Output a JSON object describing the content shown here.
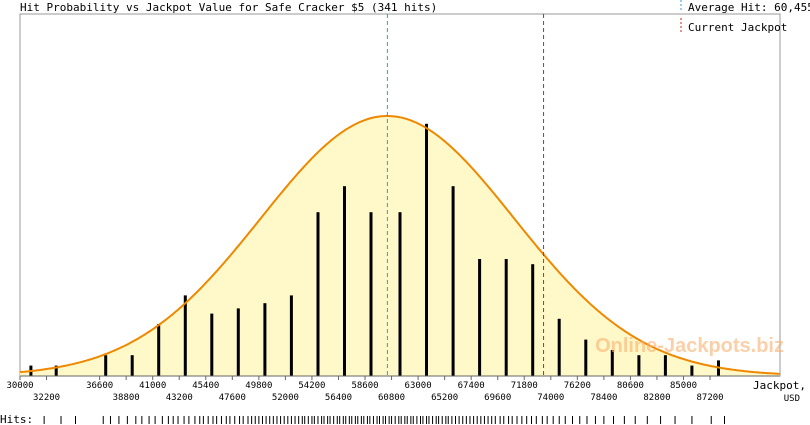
{
  "chart_data": {
    "type": "bar",
    "title": "Hit Probability vs Jackpot Value for Safe Cracker $5 (341 hits)",
    "xlabel": "Jackpot,",
    "xlabel_unit": "USD",
    "hits_label": "Hits:",
    "watermark": "Online-Jackpots.biz",
    "xlim": [
      30000,
      93000
    ],
    "ylim": [
      0,
      1
    ],
    "average": {
      "label": "Average Hit: 60,455",
      "value": 60455,
      "color": "#3399dd"
    },
    "current": {
      "label": "Current Jackpot",
      "value": 73400,
      "color": "#cc2222"
    },
    "curve": {
      "mean": 60455,
      "sd": 10500,
      "peak": 1.0,
      "stroke": "#ee8800",
      "fill": "#fff8c8"
    },
    "ticks_upper": [
      30000,
      36600,
      41000,
      45400,
      49800,
      54200,
      58600,
      63000,
      67400,
      71800,
      76200,
      80600,
      85000
    ],
    "ticks_lower": [
      32200,
      38800,
      43200,
      47600,
      52000,
      56400,
      60800,
      65200,
      69600,
      74000,
      78400,
      82800,
      87200
    ],
    "bars": [
      {
        "x": 30900,
        "h": 0.04
      },
      {
        "x": 33000,
        "h": 0.04
      },
      {
        "x": 37100,
        "h": 0.08
      },
      {
        "x": 39300,
        "h": 0.08
      },
      {
        "x": 41500,
        "h": 0.2
      },
      {
        "x": 43700,
        "h": 0.31
      },
      {
        "x": 45900,
        "h": 0.24
      },
      {
        "x": 48100,
        "h": 0.26
      },
      {
        "x": 50300,
        "h": 0.28
      },
      {
        "x": 52500,
        "h": 0.31
      },
      {
        "x": 54700,
        "h": 0.63
      },
      {
        "x": 56900,
        "h": 0.73
      },
      {
        "x": 59100,
        "h": 0.63
      },
      {
        "x": 61500,
        "h": 0.63
      },
      {
        "x": 63700,
        "h": 0.97
      },
      {
        "x": 65900,
        "h": 0.73
      },
      {
        "x": 68100,
        "h": 0.45
      },
      {
        "x": 70300,
        "h": 0.45
      },
      {
        "x": 72500,
        "h": 0.43
      },
      {
        "x": 74700,
        "h": 0.22
      },
      {
        "x": 76900,
        "h": 0.14
      },
      {
        "x": 79100,
        "h": 0.1
      },
      {
        "x": 81300,
        "h": 0.08
      },
      {
        "x": 83500,
        "h": 0.08
      },
      {
        "x": 85700,
        "h": 0.04
      },
      {
        "x": 87900,
        "h": 0.06
      }
    ],
    "hits": [
      32000,
      33400,
      34600,
      36900,
      37500,
      38200,
      38900,
      39600,
      40100,
      40700,
      41200,
      41800,
      42300,
      42700,
      43100,
      43600,
      44000,
      44500,
      44900,
      45200,
      45600,
      46000,
      46300,
      46700,
      47100,
      47400,
      47800,
      48200,
      48500,
      48900,
      49200,
      49500,
      49800,
      50100,
      50400,
      50700,
      51000,
      51300,
      51600,
      51900,
      52200,
      52500,
      52800,
      53100,
      53400,
      53600,
      53900,
      54200,
      54400,
      54700,
      55000,
      55200,
      55500,
      55700,
      56000,
      56300,
      56500,
      56800,
      57000,
      57300,
      57500,
      57800,
      58000,
      58300,
      58500,
      58800,
      59000,
      59300,
      59600,
      59800,
      60100,
      60300,
      60600,
      60800,
      61100,
      61400,
      61600,
      61900,
      62100,
      62400,
      62600,
      62900,
      63200,
      63400,
      63700,
      63900,
      64200,
      64500,
      64700,
      65000,
      65300,
      65500,
      65800,
      66100,
      66400,
      66700,
      67000,
      67300,
      67600,
      67900,
      68200,
      68500,
      68800,
      69100,
      69400,
      69800,
      70100,
      70500,
      70800,
      71200,
      71600,
      72000,
      72400,
      72800,
      73300,
      73700,
      74200,
      74700,
      75200,
      75800,
      76400,
      77000,
      77700,
      78400,
      79200,
      80100,
      81000,
      82000,
      83100,
      84300,
      85700,
      87300,
      88400
    ]
  }
}
